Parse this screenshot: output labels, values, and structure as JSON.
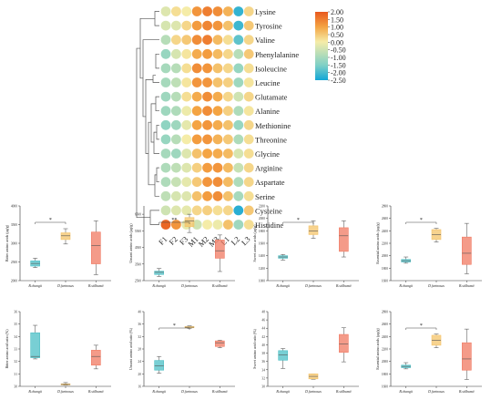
{
  "colors": {
    "heat_high": "#e8581e",
    "heat_mid_high": "#f4a443",
    "heat_mid": "#f5eca8",
    "heat_mid_low": "#7fd0c6",
    "heat_low": "#13a6d6",
    "box_1": "#4bbfc5",
    "box_2": "#f4c469",
    "box_3": "#f07a62"
  },
  "chart_data": [
    {
      "type": "heatmap",
      "columns": [
        "F1",
        "F2",
        "F3",
        "M1",
        "M2",
        "M3",
        "L1",
        "L2",
        "L3"
      ],
      "rows": [
        "Lysine",
        "Tyrosine",
        "Valine",
        "Phenylalanine",
        "Isoleucine",
        "Leucine",
        "Glutamate",
        "Alanine",
        "Methionine",
        "Threonine",
        "Glycine",
        "Arginine",
        "Aspartate",
        "Serine",
        "Cysteine",
        "Histidine"
      ],
      "values": [
        [
          -0.3,
          0.2,
          0.0,
          1.2,
          1.5,
          1.3,
          0.8,
          -2.2,
          0.3
        ],
        [
          -0.4,
          -0.3,
          0.3,
          1.1,
          1.4,
          1.2,
          0.6,
          -2.1,
          0.5
        ],
        [
          -0.8,
          0.3,
          0.5,
          1.3,
          1.5,
          0.7,
          0.2,
          -1.8,
          0.3
        ],
        [
          -1.2,
          -0.4,
          0.1,
          0.9,
          1.1,
          0.7,
          0.3,
          -0.8,
          0.5
        ],
        [
          -1.0,
          -0.8,
          0.2,
          1.3,
          1.2,
          0.6,
          0.3,
          -1.2,
          0.2
        ],
        [
          -1.0,
          -0.7,
          0.1,
          1.2,
          1.2,
          0.6,
          0.4,
          -1.1,
          0.1
        ],
        [
          -1.1,
          -0.8,
          0.2,
          0.9,
          1.3,
          0.9,
          0.3,
          -0.5,
          0.3
        ],
        [
          -1.1,
          -0.9,
          -0.1,
          1.0,
          1.3,
          1.0,
          0.4,
          -0.9,
          0.1
        ],
        [
          -1.3,
          -1.1,
          -0.2,
          1.0,
          1.2,
          0.9,
          0.6,
          -1.2,
          0.3
        ],
        [
          -1.2,
          -0.8,
          0.0,
          1.1,
          1.2,
          0.8,
          0.5,
          -0.9,
          0.2
        ],
        [
          -1.0,
          -1.1,
          -0.3,
          0.6,
          1.0,
          0.9,
          0.7,
          -0.4,
          0.2
        ],
        [
          -0.9,
          -0.7,
          -0.3,
          0.4,
          1.1,
          1.2,
          0.7,
          -0.6,
          0.3
        ],
        [
          -0.9,
          -0.6,
          -0.2,
          0.5,
          1.2,
          1.3,
          0.7,
          -0.9,
          0.3
        ],
        [
          -0.7,
          -0.4,
          -0.3,
          0.6,
          1.1,
          1.3,
          0.6,
          -1.0,
          0.2
        ],
        [
          -0.5,
          -0.3,
          -0.2,
          0.3,
          0.4,
          0.2,
          0.3,
          -2.3,
          0.5
        ],
        [
          1.8,
          1.2,
          -0.2,
          -0.5,
          0.0,
          -0.1,
          0.6,
          -1.1,
          0.2
        ]
      ],
      "legend_ticks": [
        "2.00",
        "1.50",
        "1.00",
        "0.50",
        "0.00",
        "-0.50",
        "-1.00",
        "-1.50",
        "-2.00",
        "-2.50"
      ],
      "vmin": -2.5,
      "vmax": 2.0
    },
    {
      "type": "box",
      "ylabel": "Bitter amino acids (μg/g)",
      "categories": [
        "B.changii",
        "D.farinosus",
        "B.stilbumii"
      ],
      "ylim": [
        2000,
        4000
      ],
      "yticks": [
        "2000",
        "2500",
        "3000",
        "3500",
        "4000"
      ],
      "boxes": [
        [
          2350,
          2390,
          2460,
          2530,
          2600
        ],
        [
          2980,
          3100,
          3200,
          3280,
          3390
        ],
        [
          2160,
          2450,
          2940,
          3300,
          3600
        ]
      ],
      "significance": [
        {
          "from": 0,
          "to": 1,
          "label": "*"
        }
      ]
    },
    {
      "type": "box",
      "ylabel": "Umami amino acids (μg/g)",
      "categories": [
        "B.changii",
        "D.farinosus",
        "B.stilbumii"
      ],
      "ylim": [
        2500,
        7000
      ],
      "yticks": [
        "2500",
        "3500",
        "4500",
        "5500",
        "6500"
      ],
      "boxes": [
        [
          2750,
          2870,
          3000,
          3070,
          3230
        ],
        [
          5400,
          5750,
          6100,
          6300,
          6500
        ],
        [
          3050,
          3850,
          4300,
          4950,
          5250
        ]
      ],
      "significance": [
        {
          "from": 0,
          "to": 1,
          "label": "**"
        }
      ]
    },
    {
      "type": "box",
      "ylabel": "Sweet amino acids (μg/g)",
      "categories": [
        "B.changii",
        "D.farinosus",
        "B.stilbumii"
      ],
      "ylim": [
        1000,
        2200
      ],
      "yticks": [
        "1000",
        "1200",
        "1400",
        "1600",
        "1800",
        "2000",
        "2200"
      ],
      "boxes": [
        [
          1330,
          1360,
          1380,
          1400,
          1420
        ],
        [
          1680,
          1740,
          1800,
          1880,
          1960
        ],
        [
          1380,
          1470,
          1720,
          1850,
          1960
        ]
      ],
      "significance": [
        {
          "from": 0,
          "to": 1,
          "label": "*"
        }
      ]
    },
    {
      "type": "box",
      "ylabel": "Essential amino acids (μg/g)",
      "categories": [
        "B.changii",
        "D.farinosus",
        "B.stilbumii"
      ],
      "ylim": [
        1600,
        2800
      ],
      "yticks": [
        "1600",
        "1800",
        "2000",
        "2200",
        "2400",
        "2600",
        "2800"
      ],
      "boxes": [
        [
          1880,
          1900,
          1920,
          1940,
          1980
        ],
        [
          2220,
          2260,
          2340,
          2420,
          2440
        ],
        [
          1710,
          1860,
          2040,
          2300,
          2520
        ]
      ],
      "significance": [
        {
          "from": 0,
          "to": 1,
          "label": "*"
        }
      ]
    },
    {
      "type": "box",
      "ylabel": "Bitter amino acid ratio (%)",
      "categories": [
        "B.changii",
        "D.farinosus",
        "B.stilbumii"
      ],
      "ylim": [
        30,
        36
      ],
      "yticks": [
        "30",
        "31",
        "32",
        "33",
        "34",
        "35",
        "36"
      ],
      "boxes": [
        [
          32.2,
          32.3,
          32.4,
          34.3,
          34.9
        ],
        [
          30.1,
          30.12,
          30.15,
          30.2,
          30.3
        ],
        [
          31.4,
          31.7,
          32.4,
          32.9,
          33.3
        ]
      ],
      "significance": []
    },
    {
      "type": "box",
      "ylabel": "Umami amino acid ratio (%)",
      "categories": [
        "B.changii",
        "D.farinosus",
        "B.stilbumii"
      ],
      "ylim": [
        16,
        40
      ],
      "yticks": [
        "16",
        "20",
        "24",
        "28",
        "32",
        "36",
        "40"
      ],
      "boxes": [
        [
          20.2,
          21.2,
          22.6,
          24.3,
          25.6
        ],
        [
          34.6,
          34.8,
          35.0,
          35.2,
          35.4
        ],
        [
          28.4,
          28.8,
          30.0,
          30.6,
          30.8
        ]
      ],
      "significance": [
        {
          "from": 0,
          "to": 1,
          "label": "*"
        }
      ]
    },
    {
      "type": "box",
      "ylabel": "Sweet amino acid ratio (%)",
      "categories": [
        "B.changii",
        "D.farinosus",
        "B.stilbumii"
      ],
      "ylim": [
        30,
        48
      ],
      "yticks": [
        "30",
        "32",
        "34",
        "36",
        "38",
        "40",
        "42",
        "44",
        "46",
        "48"
      ],
      "boxes": [
        [
          34.3,
          36.3,
          37.6,
          38.6,
          39.1
        ],
        [
          31.7,
          31.8,
          32.4,
          33.0,
          33.0
        ],
        [
          35.9,
          38.2,
          40.2,
          42.5,
          44.1
        ]
      ],
      "significance": []
    },
    {
      "type": "box",
      "ylabel": "Essential amino acids (μg/g)",
      "categories": [
        "B.changii",
        "D.farinosus",
        "B.stilbumii"
      ],
      "ylim": [
        1600,
        2800
      ],
      "yticks": [
        "1600",
        "1800",
        "2000",
        "2200",
        "2400",
        "2600",
        "2800"
      ],
      "boxes": [
        [
          1880,
          1900,
          1920,
          1940,
          1980
        ],
        [
          2220,
          2260,
          2340,
          2420,
          2440
        ],
        [
          1710,
          1860,
          2040,
          2300,
          2520
        ]
      ],
      "significance": [
        {
          "from": 0,
          "to": 1,
          "label": "*"
        }
      ]
    }
  ]
}
